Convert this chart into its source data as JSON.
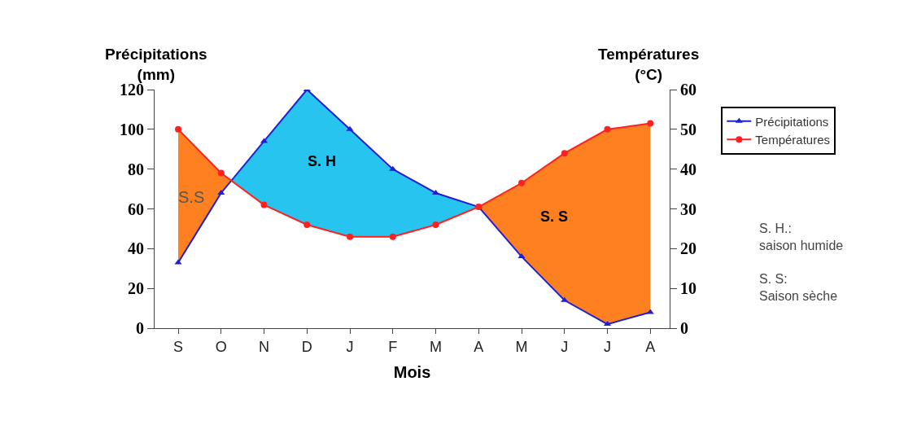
{
  "chart_data": {
    "type": "line",
    "xlabel": "Mois",
    "ylabel": "Précipitations\n(mm)",
    "y2label": "Températures\n(°C)",
    "categories": [
      "S",
      "O",
      "N",
      "D",
      "J",
      "F",
      "M",
      "A",
      "M",
      "J",
      "J",
      "A"
    ],
    "series": [
      {
        "name": "Précipitations",
        "color": "#2020d0",
        "marker": "triangle",
        "values": [
          33,
          68,
          94,
          120,
          100,
          80,
          68,
          61,
          36,
          14,
          2,
          8
        ]
      },
      {
        "name": "Températures",
        "color": "#ff2020",
        "marker": "circle",
        "axis": "y2",
        "values": [
          50,
          39,
          31,
          26,
          23,
          23,
          26,
          30.5,
          36.5,
          44,
          50,
          51.5
        ]
      }
    ],
    "ylim": [
      0,
      120
    ],
    "yticks": [
      0,
      20,
      40,
      60,
      80,
      100,
      120
    ],
    "y2lim": [
      0,
      60
    ],
    "y2ticks": [
      0,
      10,
      20,
      30,
      40,
      50,
      60
    ],
    "legend": "right",
    "annotations": [
      "S.S",
      "S. H",
      "S. S",
      "S. H.:\nsaison humide",
      "S. S:\nSaison sèche"
    ]
  }
}
